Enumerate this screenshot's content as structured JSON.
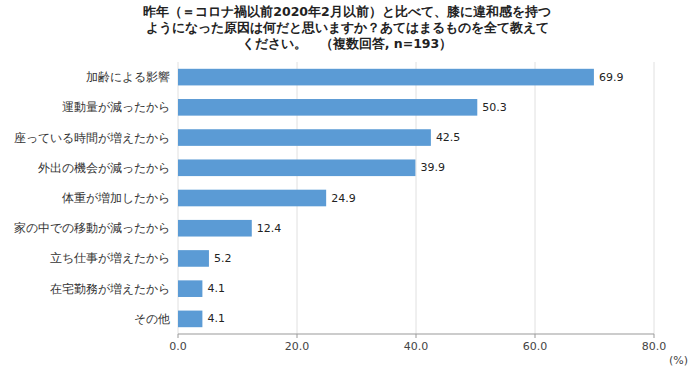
{
  "chart_data": {
    "type": "bar",
    "orientation": "horizontal",
    "title": "昨年（＝コロナ禍以前2020年2月以前）と比べて、膝に違和感を持つ\nようになった原因は何だと思いますか？あてはまるものを全て教えて\nください。　（複数回答, n=193）",
    "xlabel": "(%)",
    "categories": [
      "加齢による影響",
      "運動量が減ったから",
      "座っている時間が増えたから",
      "外出の機会が減ったから",
      "体重が増加したから",
      "家の中での移動が減ったから",
      "立ち仕事が増えたから",
      "在宅勤務が増えたから",
      "その他"
    ],
    "values": [
      69.9,
      50.3,
      42.5,
      39.9,
      24.9,
      12.4,
      5.2,
      4.1,
      4.1
    ],
    "color": "#5b9bd5",
    "xlim": [
      0,
      80
    ],
    "xticks": [
      {
        "value": 0,
        "label": "0.0"
      },
      {
        "value": 20,
        "label": "20.0"
      },
      {
        "value": 40,
        "label": "40.0"
      },
      {
        "value": 60,
        "label": "60.0"
      },
      {
        "value": 80,
        "label": "80.0"
      }
    ],
    "grid": true,
    "data_labels": true
  }
}
